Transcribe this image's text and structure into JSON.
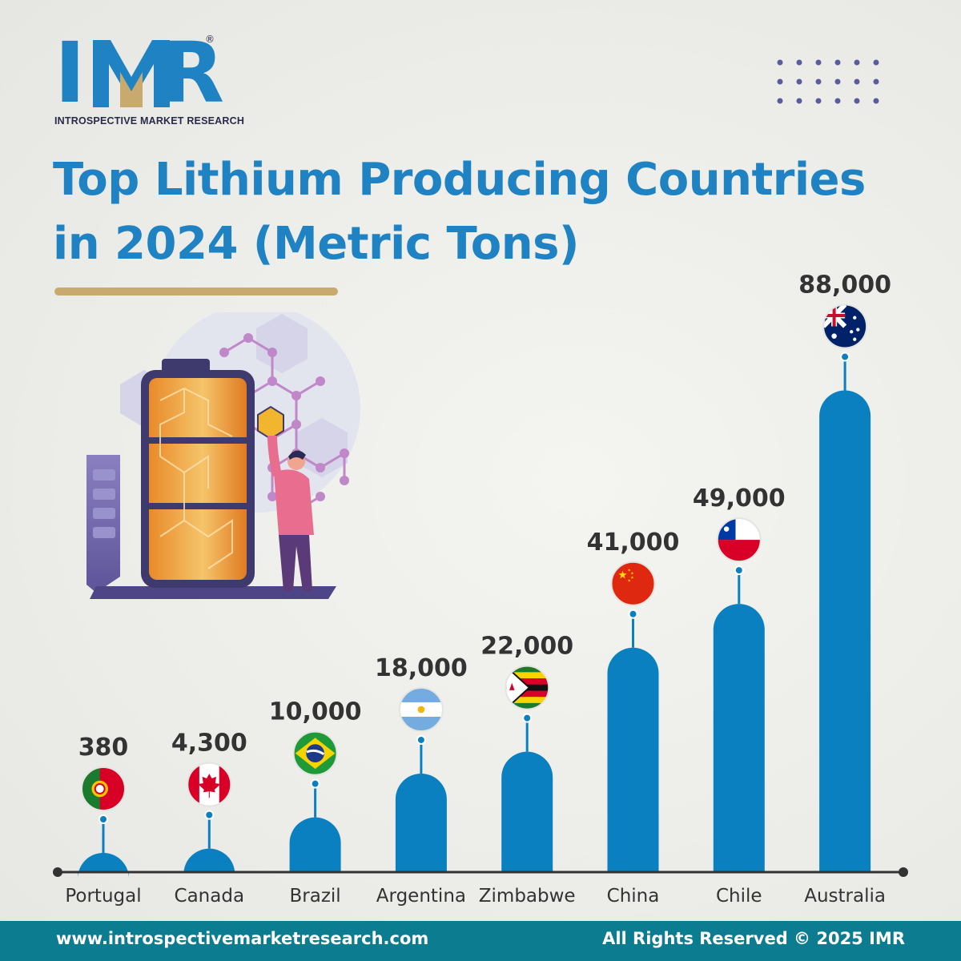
{
  "brand": {
    "logo_letters": [
      "I",
      "M",
      "R"
    ],
    "registered_mark": "®",
    "tagline": "INTROSPECTIVE MARKET RESEARCH"
  },
  "title_lines": [
    "Top Lithium Producing Countries",
    "in 2024 (Metric Tons)"
  ],
  "colors": {
    "primary_blue": "#1e82c3",
    "bar_blue": "#0a80c0",
    "gold": "#c9aa6e",
    "dark_text": "#333333",
    "footer_teal": "#0c7d90",
    "dots": "#5b5b9e"
  },
  "chart_data": {
    "type": "bar",
    "title": "Top Lithium Producing Countries in 2024 (Metric Tons)",
    "categories": [
      "Portugal",
      "Canada",
      "Brazil",
      "Argentina",
      "Zimbabwe",
      "China",
      "Chile",
      "Australia"
    ],
    "values": [
      380,
      4300,
      10000,
      18000,
      22000,
      41000,
      49000,
      88000
    ],
    "value_labels": [
      "380",
      "4,300",
      "10,000",
      "18,000",
      "22,000",
      "41,000",
      "49,000",
      "88,000"
    ],
    "flag_icons": [
      "portugal-flag-icon",
      "canada-flag-icon",
      "brazil-flag-icon",
      "argentina-flag-icon",
      "zimbabwe-flag-icon",
      "china-flag-icon",
      "chile-flag-icon",
      "australia-flag-icon"
    ],
    "grid": false,
    "legend": "none"
  },
  "footer": {
    "url": "www.introspectivemarketresearch.com",
    "copyright": "All Rights Reserved © 2025 IMR"
  }
}
